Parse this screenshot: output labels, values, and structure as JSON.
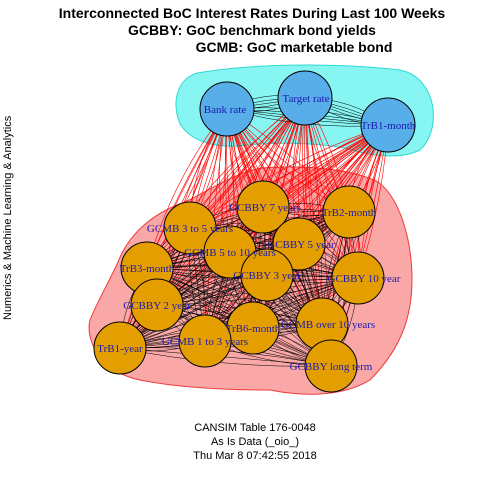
{
  "title": {
    "line1": "Interconnected BoC Interest Rates During Last 100 Weeks",
    "line2": "GCBBY: GoC benchmark bond yields",
    "line3": "GCMB: GoC marketable bond"
  },
  "side_label": "Numerics & Machine Learning & Analytics",
  "footer": {
    "line1": "CANSIM Table 176-0048",
    "line2": "As Is Data (_oio_)",
    "line3": "Thu Mar  8 07:42:55 2018"
  },
  "colors": {
    "group1_fill": "#87f6f3",
    "group1_border": "#2fd9d2",
    "group2_fill": "#f9a7a7",
    "group2_border": "#ee3b3b",
    "node1_fill": "#58aee8",
    "node2_fill": "#e59e00",
    "intra_edge": "#000000",
    "cross_edge": "#ff0000",
    "label_color": "#1a1ab0"
  },
  "groups": [
    {
      "name": "group-1",
      "nodes": [
        "Bank rate",
        "Target rate",
        "TrB1-month"
      ]
    },
    {
      "name": "group-2",
      "nodes": [
        "GCBBY 7 years",
        "TrB2-month",
        "GCMB 3 to 5 years",
        "GCMB 5 to 10 years",
        "GCBBY 5 year",
        "TrB3-month",
        "GCBBY 3 year",
        "GCBBY 10 year",
        "GCBBY 2 year",
        "GCMB over 10 years",
        "TrB6-month",
        "TrB1-year",
        "GCMB 1 to 3 years",
        "GCBBY long term"
      ]
    }
  ],
  "nodes": [
    {
      "label": "Bank rate",
      "group": 1
    },
    {
      "label": "Target rate",
      "group": 1
    },
    {
      "label": "TrB1-month",
      "group": 1
    },
    {
      "label": "GCBBY 7 years",
      "group": 2
    },
    {
      "label": "TrB2-month",
      "group": 2
    },
    {
      "label": "GCMB 3 to 5 years",
      "group": 2
    },
    {
      "label": "GCMB 5 to 10 years",
      "group": 2
    },
    {
      "label": "GCBBY 5 year",
      "group": 2
    },
    {
      "label": "TrB3-month",
      "group": 2
    },
    {
      "label": "GCBBY 3 year",
      "group": 2
    },
    {
      "label": "GCBBY 10 year",
      "group": 2
    },
    {
      "label": "GCBBY 2 year",
      "group": 2
    },
    {
      "label": "GCMB over 10 years",
      "group": 2
    },
    {
      "label": "TrB6-month",
      "group": 2
    },
    {
      "label": "TrB1-year",
      "group": 2
    },
    {
      "label": "GCMB 1 to 3 years",
      "group": 2
    },
    {
      "label": "GCBBY long term",
      "group": 2
    }
  ]
}
